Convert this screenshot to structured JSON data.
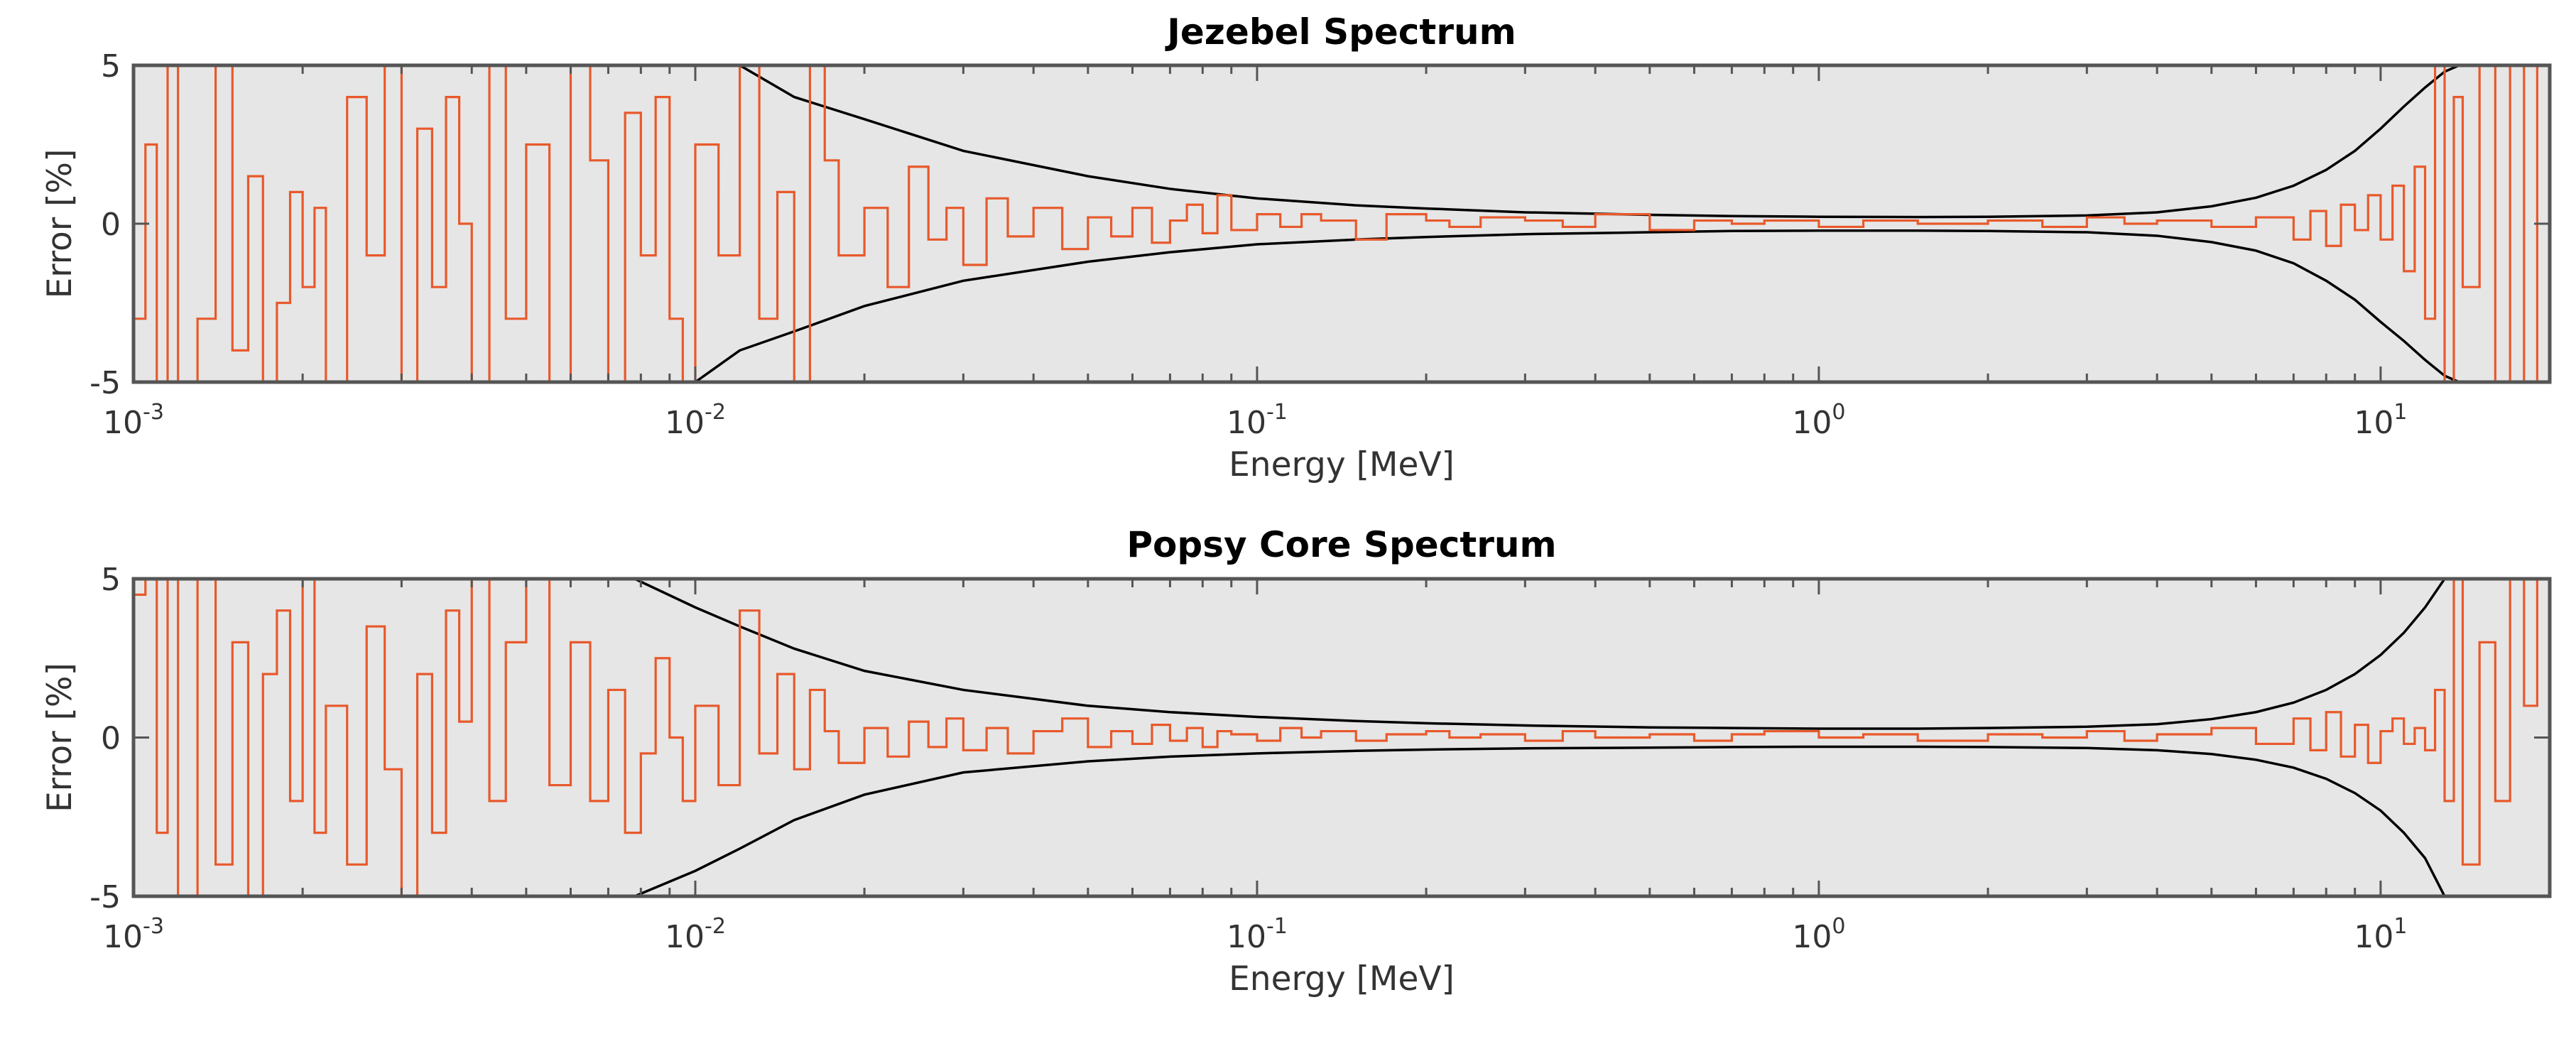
{
  "chart_data": [
    {
      "type": "line",
      "title": "Jezebel Spectrum",
      "xlabel": "Energy [MeV]",
      "ylabel": "Error [%]",
      "xscale": "log",
      "xlim": [
        0.001,
        20
      ],
      "ylim": [
        -5,
        5
      ],
      "yticks": [
        -5,
        0,
        5
      ],
      "xticks": [
        {
          "base": "10",
          "exp": "-3",
          "value": 0.001
        },
        {
          "base": "10",
          "exp": "-2",
          "value": 0.01
        },
        {
          "base": "10",
          "exp": "-1",
          "value": 0.1
        },
        {
          "base": "10",
          "exp": "0",
          "value": 1
        },
        {
          "base": "10",
          "exp": "1",
          "value": 10
        }
      ],
      "colors": {
        "band": "#e6e6e6",
        "envelope": "#000000",
        "error": "#e8592b"
      },
      "series": [
        {
          "name": "uncertainty envelope (upper)",
          "x": [
            0.012,
            0.015,
            0.02,
            0.03,
            0.05,
            0.07,
            0.1,
            0.15,
            0.2,
            0.3,
            0.5,
            0.7,
            1,
            1.5,
            2,
            3,
            4,
            5,
            6,
            7,
            8,
            9,
            10,
            11,
            12,
            13,
            13.8
          ],
          "y": [
            5,
            4.0,
            3.3,
            2.3,
            1.5,
            1.1,
            0.8,
            0.58,
            0.48,
            0.36,
            0.28,
            0.24,
            0.22,
            0.21,
            0.22,
            0.26,
            0.36,
            0.55,
            0.82,
            1.2,
            1.7,
            2.3,
            3.0,
            3.7,
            4.3,
            4.8,
            5
          ]
        },
        {
          "name": "uncertainty envelope (lower)",
          "x": [
            0.01,
            0.012,
            0.015,
            0.02,
            0.03,
            0.05,
            0.07,
            0.1,
            0.15,
            0.2,
            0.3,
            0.5,
            0.7,
            1,
            1.5,
            2,
            3,
            4,
            5,
            6,
            7,
            8,
            9,
            10,
            11,
            12,
            13,
            13.8
          ],
          "y": [
            -5,
            -4.0,
            -3.4,
            -2.6,
            -1.8,
            -1.2,
            -0.9,
            -0.65,
            -0.5,
            -0.42,
            -0.33,
            -0.27,
            -0.23,
            -0.22,
            -0.22,
            -0.23,
            -0.27,
            -0.38,
            -0.58,
            -0.85,
            -1.25,
            -1.8,
            -2.4,
            -3.1,
            -3.7,
            -4.3,
            -4.8,
            -5
          ]
        },
        {
          "name": "sampled error",
          "x": [
            0.001,
            0.00105,
            0.0011,
            0.00115,
            0.0012,
            0.0013,
            0.0014,
            0.0015,
            0.0016,
            0.0017,
            0.0018,
            0.0019,
            0.002,
            0.0021,
            0.0022,
            0.0024,
            0.0026,
            0.0028,
            0.003,
            0.0032,
            0.0034,
            0.0036,
            0.0038,
            0.004,
            0.0043,
            0.0046,
            0.005,
            0.0055,
            0.006,
            0.0065,
            0.007,
            0.0075,
            0.008,
            0.0085,
            0.009,
            0.0095,
            0.01,
            0.011,
            0.012,
            0.013,
            0.014,
            0.015,
            0.016,
            0.017,
            0.018,
            0.02,
            0.022,
            0.024,
            0.026,
            0.028,
            0.03,
            0.033,
            0.036,
            0.04,
            0.045,
            0.05,
            0.055,
            0.06,
            0.065,
            0.07,
            0.075,
            0.08,
            0.085,
            0.09,
            0.1,
            0.11,
            0.12,
            0.13,
            0.15,
            0.17,
            0.2,
            0.22,
            0.25,
            0.3,
            0.35,
            0.4,
            0.5,
            0.6,
            0.7,
            0.8,
            1,
            1.2,
            1.5,
            2,
            2.5,
            3,
            3.5,
            4,
            5,
            6,
            7,
            7.5,
            8,
            8.5,
            9,
            9.5,
            10,
            10.5,
            11,
            11.5,
            12,
            12.5,
            13,
            13.5,
            14,
            15,
            16,
            17,
            18,
            19,
            20
          ],
          "y": [
            -3,
            2.5,
            -5,
            5,
            -5,
            -3,
            5,
            -4,
            1.5,
            -5,
            -2.5,
            1,
            -2,
            0.5,
            -5,
            4,
            -1,
            5,
            -5,
            3,
            -2,
            4,
            0,
            -5,
            5,
            -3,
            2.5,
            -5,
            5,
            2,
            -5,
            3.5,
            -1,
            4,
            -3,
            -5,
            2.5,
            -1,
            5,
            -3,
            1,
            -5,
            5,
            2,
            -1,
            0.5,
            -2,
            1.8,
            -0.5,
            0.5,
            -1.3,
            0.8,
            -0.4,
            0.5,
            -0.8,
            0.2,
            -0.4,
            0.5,
            -0.6,
            0.1,
            0.6,
            -0.3,
            0.9,
            -0.2,
            0.3,
            -0.1,
            0.3,
            0.1,
            -0.5,
            0.3,
            0.1,
            -0.1,
            0.2,
            0.1,
            -0.1,
            0.3,
            -0.2,
            0.1,
            0,
            0.1,
            -0.1,
            0.1,
            0,
            0.1,
            -0.1,
            0.2,
            0,
            0.1,
            -0.1,
            0.2,
            -0.5,
            0.4,
            -0.7,
            0.6,
            -0.2,
            0.9,
            -0.5,
            1.2,
            -1.5,
            1.8,
            -3,
            5,
            -5,
            4,
            -2,
            5,
            -5,
            5,
            -5,
            5,
            2
          ]
        }
      ]
    },
    {
      "type": "line",
      "title": "Popsy Core Spectrum",
      "xlabel": "Energy [MeV]",
      "ylabel": "Error [%]",
      "xscale": "log",
      "xlim": [
        0.001,
        20
      ],
      "ylim": [
        -5,
        5
      ],
      "yticks": [
        -5,
        0,
        5
      ],
      "xticks": [
        {
          "base": "10",
          "exp": "-3",
          "value": 0.001
        },
        {
          "base": "10",
          "exp": "-2",
          "value": 0.01
        },
        {
          "base": "10",
          "exp": "-1",
          "value": 0.1
        },
        {
          "base": "10",
          "exp": "0",
          "value": 1
        },
        {
          "base": "10",
          "exp": "1",
          "value": 10
        }
      ],
      "colors": {
        "band": "#e6e6e6",
        "envelope": "#000000",
        "error": "#e8592b"
      },
      "series": [
        {
          "name": "uncertainty envelope (upper)",
          "x": [
            0.0078,
            0.01,
            0.012,
            0.015,
            0.02,
            0.03,
            0.05,
            0.07,
            0.1,
            0.15,
            0.2,
            0.3,
            0.5,
            0.7,
            1,
            1.5,
            2,
            3,
            4,
            5,
            6,
            7,
            8,
            9,
            10,
            11,
            12,
            13
          ],
          "y": [
            5,
            4.1,
            3.5,
            2.8,
            2.1,
            1.5,
            1.0,
            0.8,
            0.65,
            0.52,
            0.45,
            0.38,
            0.32,
            0.3,
            0.28,
            0.28,
            0.3,
            0.34,
            0.42,
            0.58,
            0.8,
            1.1,
            1.5,
            2.0,
            2.6,
            3.3,
            4.1,
            5
          ]
        },
        {
          "name": "uncertainty envelope (lower)",
          "x": [
            0.0078,
            0.01,
            0.012,
            0.015,
            0.02,
            0.03,
            0.05,
            0.07,
            0.1,
            0.15,
            0.2,
            0.3,
            0.5,
            0.7,
            1,
            1.5,
            2,
            3,
            4,
            5,
            6,
            7,
            8,
            9,
            10,
            11,
            12,
            13
          ],
          "y": [
            -5,
            -4.2,
            -3.5,
            -2.6,
            -1.8,
            -1.1,
            -0.75,
            -0.6,
            -0.5,
            -0.42,
            -0.38,
            -0.34,
            -0.32,
            -0.3,
            -0.29,
            -0.29,
            -0.3,
            -0.33,
            -0.4,
            -0.52,
            -0.7,
            -0.95,
            -1.3,
            -1.75,
            -2.3,
            -3.0,
            -3.8,
            -5
          ]
        },
        {
          "name": "sampled error",
          "x": [
            0.001,
            0.00105,
            0.0011,
            0.00115,
            0.0012,
            0.0013,
            0.0014,
            0.0015,
            0.0016,
            0.0017,
            0.0018,
            0.0019,
            0.002,
            0.0021,
            0.0022,
            0.0024,
            0.0026,
            0.0028,
            0.003,
            0.0032,
            0.0034,
            0.0036,
            0.0038,
            0.004,
            0.0043,
            0.0046,
            0.005,
            0.0055,
            0.006,
            0.0065,
            0.007,
            0.0075,
            0.008,
            0.0085,
            0.009,
            0.0095,
            0.01,
            0.011,
            0.012,
            0.013,
            0.014,
            0.015,
            0.016,
            0.017,
            0.018,
            0.02,
            0.022,
            0.024,
            0.026,
            0.028,
            0.03,
            0.033,
            0.036,
            0.04,
            0.045,
            0.05,
            0.055,
            0.06,
            0.065,
            0.07,
            0.075,
            0.08,
            0.085,
            0.09,
            0.1,
            0.11,
            0.12,
            0.13,
            0.15,
            0.17,
            0.2,
            0.22,
            0.25,
            0.3,
            0.35,
            0.4,
            0.5,
            0.6,
            0.7,
            0.8,
            1,
            1.2,
            1.5,
            2,
            2.5,
            3,
            3.5,
            4,
            5,
            6,
            7,
            7.5,
            8,
            8.5,
            9,
            9.5,
            10,
            10.5,
            11,
            11.5,
            12,
            12.5,
            13,
            13.5,
            14,
            15,
            16,
            17,
            18,
            19,
            20
          ],
          "y": [
            4.5,
            5,
            -3,
            5,
            -5,
            5,
            -4,
            3,
            -5,
            2,
            4,
            -2,
            5,
            -3,
            1,
            -4,
            3.5,
            -1,
            -5,
            2,
            -3,
            4,
            0.5,
            5,
            -2,
            3,
            5,
            -1.5,
            3,
            -2,
            1.5,
            -3,
            -0.5,
            2.5,
            0,
            -2,
            1,
            -1.5,
            4,
            -0.5,
            2,
            -1,
            1.5,
            0.2,
            -0.8,
            0.3,
            -0.6,
            0.5,
            -0.3,
            0.6,
            -0.4,
            0.3,
            -0.5,
            0.2,
            0.6,
            -0.3,
            0.2,
            -0.2,
            0.4,
            -0.1,
            0.3,
            -0.3,
            0.2,
            0.1,
            -0.1,
            0.3,
            0,
            0.2,
            -0.1,
            0.1,
            0.2,
            0,
            0.1,
            -0.1,
            0.2,
            0,
            0.1,
            -0.1,
            0.1,
            0.2,
            0,
            0.1,
            -0.1,
            0.1,
            0,
            0.2,
            -0.1,
            0.1,
            0.3,
            -0.2,
            0.6,
            -0.4,
            0.8,
            -0.6,
            0.4,
            -0.8,
            0.2,
            0.6,
            -0.2,
            0.3,
            -0.4,
            1.5,
            -2,
            5,
            -4,
            3,
            -2,
            5,
            1,
            5,
            -4.5
          ]
        }
      ]
    }
  ]
}
